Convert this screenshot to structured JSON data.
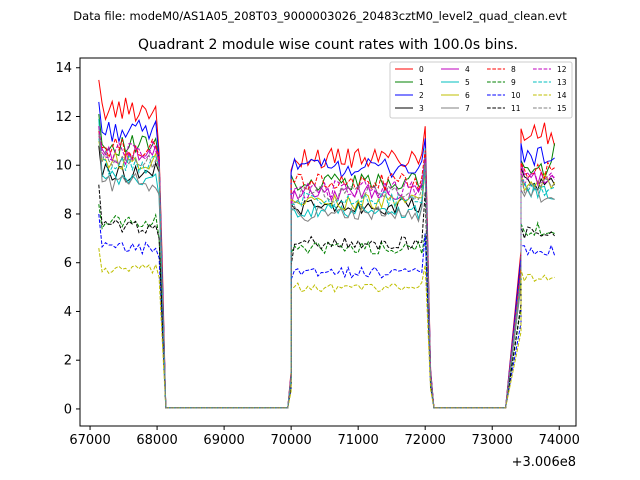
{
  "chart_data": {
    "type": "line",
    "suptitle": "Data file: modeM0/AS1A05_208T03_9000003026_20483cztM0_level2_quad_clean.evt",
    "title": "Quadrant 2 module wise count rates with 100.0s bins.",
    "xlabel": "",
    "ylabel": "",
    "offset_label": "+3.006e8",
    "x_offset": 300600000,
    "xlim": [
      66850,
      74250
    ],
    "ylim": [
      -0.7,
      14.4
    ],
    "xticks": [
      67000,
      68000,
      69000,
      70000,
      71000,
      72000,
      73000,
      74000
    ],
    "xtick_labels": [
      "67000",
      "68000",
      "69000",
      "70000",
      "71000",
      "72000",
      "73000",
      "74000"
    ],
    "yticks": [
      0,
      2,
      4,
      6,
      8,
      10,
      12,
      14
    ],
    "ytick_labels": [
      "0",
      "2",
      "4",
      "6",
      "8",
      "10",
      "12",
      "14"
    ],
    "legend_location": "top-right",
    "legend_columns": 4,
    "segments": [
      {
        "start": 67130,
        "end": 68030,
        "step": 50,
        "tail": [
          68130
        ]
      },
      {
        "start": 70000,
        "end": 72030,
        "step": 50,
        "tail": [
          72130
        ]
      },
      {
        "start": 73430,
        "end": 73930,
        "step": 50,
        "tail": []
      }
    ],
    "gap_segments": [
      {
        "x": [
          68080,
          68130,
          69950,
          70000
        ],
        "y": [
          4.5,
          0.05,
          0.05,
          1.2
        ]
      },
      {
        "x": [
          72080,
          72130,
          73200,
          73430
        ],
        "y": [
          1.5,
          0.05,
          0.05,
          6.0
        ]
      }
    ],
    "series": [
      {
        "name": "0",
        "color": "#ff0000",
        "dash": "solid",
        "levels": [
          12.3,
          10.3,
          11.3
        ],
        "starts": [
          13.5,
          9.8,
          11.5
        ],
        "ends": [
          10.5,
          11.6,
          10.8
        ]
      },
      {
        "name": "1",
        "color": "#008000",
        "dash": "solid",
        "levels": [
          10.8,
          9.3,
          9.8
        ],
        "starts": [
          12.1,
          9.6,
          10.2
        ],
        "ends": [
          10.2,
          10.2,
          10.9
        ]
      },
      {
        "name": "2",
        "color": "#0000ff",
        "dash": "solid",
        "levels": [
          11.4,
          9.9,
          10.4
        ],
        "starts": [
          12.6,
          9.7,
          10.9
        ],
        "ends": [
          10.3,
          11.1,
          10.3
        ]
      },
      {
        "name": "3",
        "color": "#000000",
        "dash": "solid",
        "levels": [
          9.7,
          8.3,
          9.2
        ],
        "starts": [
          10.8,
          8.4,
          9.9
        ],
        "ends": [
          9.7,
          9.9,
          9.2
        ]
      },
      {
        "name": "4",
        "color": "#bf00bf",
        "dash": "solid",
        "levels": [
          10.4,
          8.9,
          9.5
        ],
        "starts": [
          11.2,
          8.3,
          10.1
        ],
        "ends": [
          10.0,
          10.1,
          9.5
        ]
      },
      {
        "name": "5",
        "color": "#00bfbf",
        "dash": "solid",
        "levels": [
          9.4,
          8.1,
          8.9
        ],
        "starts": [
          11.9,
          8.2,
          9.2
        ],
        "ends": [
          8.7,
          10.7,
          8.6
        ]
      },
      {
        "name": "6",
        "color": "#bfbf00",
        "dash": "solid",
        "levels": [
          10.2,
          8.5,
          9.3
        ],
        "starts": [
          11.0,
          8.6,
          9.7
        ],
        "ends": [
          9.8,
          9.7,
          9.3
        ]
      },
      {
        "name": "7",
        "color": "#808080",
        "dash": "solid",
        "levels": [
          9.3,
          8.0,
          8.8
        ],
        "starts": [
          11.6,
          8.1,
          9.0
        ],
        "ends": [
          8.8,
          10.0,
          8.6
        ]
      },
      {
        "name": "8",
        "color": "#ff0000",
        "dash": "dashed",
        "levels": [
          10.7,
          9.3,
          9.8
        ],
        "starts": [
          11.4,
          9.4,
          10.1
        ],
        "ends": [
          10.4,
          10.6,
          9.9
        ]
      },
      {
        "name": "9",
        "color": "#008000",
        "dash": "dashed",
        "levels": [
          7.7,
          6.6,
          7.4
        ],
        "starts": [
          8.4,
          6.4,
          7.6
        ],
        "ends": [
          7.0,
          7.2,
          7.2
        ]
      },
      {
        "name": "10",
        "color": "#0000ff",
        "dash": "dashed",
        "levels": [
          6.6,
          5.6,
          6.5
        ],
        "starts": [
          8.0,
          5.3,
          6.7
        ],
        "ends": [
          6.2,
          7.2,
          6.3
        ]
      },
      {
        "name": "11",
        "color": "#000000",
        "dash": "dashed",
        "levels": [
          7.5,
          6.8,
          7.2
        ],
        "starts": [
          9.2,
          5.9,
          7.5
        ],
        "ends": [
          7.0,
          8.9,
          7.1
        ]
      },
      {
        "name": "12",
        "color": "#bf00bf",
        "dash": "dashed",
        "levels": [
          10.6,
          9.0,
          9.4
        ],
        "starts": [
          11.6,
          8.7,
          9.8
        ],
        "ends": [
          10.2,
          10.3,
          9.4
        ]
      },
      {
        "name": "13",
        "color": "#00bfbf",
        "dash": "dashed",
        "levels": [
          10.0,
          8.6,
          9.0
        ],
        "starts": [
          11.1,
          8.4,
          9.4
        ],
        "ends": [
          9.9,
          10.0,
          9.1
        ]
      },
      {
        "name": "14",
        "color": "#bfbf00",
        "dash": "dashed",
        "levels": [
          5.7,
          5.0,
          5.4
        ],
        "starts": [
          6.6,
          4.9,
          5.7
        ],
        "ends": [
          5.4,
          5.9,
          5.4
        ]
      },
      {
        "name": "15",
        "color": "#808080",
        "dash": "dashed",
        "levels": [
          10.2,
          8.8,
          9.2
        ],
        "starts": [
          11.3,
          8.4,
          9.6
        ],
        "ends": [
          9.9,
          10.1,
          9.2
        ]
      }
    ]
  }
}
